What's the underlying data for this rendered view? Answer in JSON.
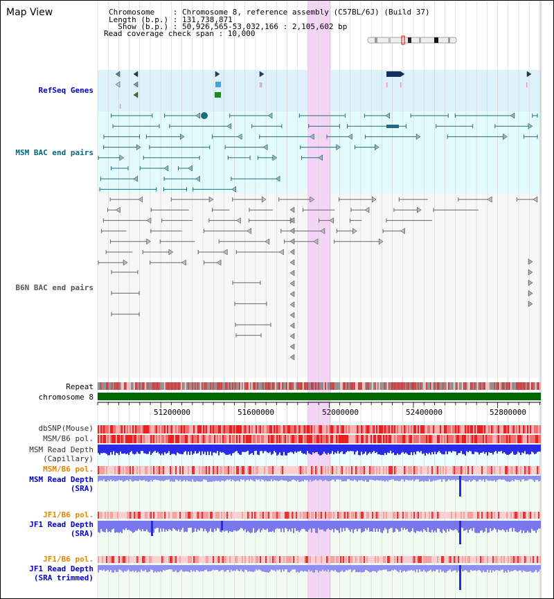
{
  "header": {
    "title": "Map View",
    "chromosome_line": "Chromosome    : Chromosome 8, reference assembly (C57BL/6J) (Build 37)",
    "length_line": "Length (b.p.) : 131,738,871",
    "show_line": "  Show (b.p.) : 50,926,565-53,032,166 : 2,105,602 bp",
    "coverage_line": "Read coverage check span : 10,000"
  },
  "tracks": {
    "refseq": "RefSeq Genes",
    "msm_bac": "MSM BAC end pairs",
    "b6n_bac": "B6N BAC end pairs",
    "repeat": "Repeat",
    "chromosome": "chromosome 8",
    "dbsnp": "dbSNP(Mouse)",
    "msm_b6_pol": "MSM/B6 pol.",
    "msm_read_depth_cap_1": "MSM Read Depth",
    "msm_read_depth_cap_2": "(Capillary)",
    "msm_b6_pol_2": "MSM/B6 pol.",
    "msm_read_depth_sra_1": "MSM Read Depth",
    "msm_read_depth_sra_2": "(SRA)",
    "jf1_b6_pol": "JF1/B6 pol.",
    "jf1_read_depth_sra_1": "JF1 Read Depth",
    "jf1_read_depth_sra_2": "(SRA)",
    "jf1_b6_pol_2": "JF1/B6 pol.",
    "jf1_read_depth_trim_1": "JF1 Read Depth",
    "jf1_read_depth_trim_2": "(SRA trimmed)"
  },
  "axis": {
    "ticks": [
      "51200000",
      "51600000",
      "52000000",
      "52400000",
      "52800000"
    ]
  },
  "colors": {
    "refseq_label": "#0000cc",
    "msm_bac_label": "#006680",
    "b6n_label": "#555555",
    "orange_label": "#dd8800",
    "blue_label": "#0000cc",
    "chromosome_bar": "#006600",
    "highlight": "#f5d5f5"
  }
}
